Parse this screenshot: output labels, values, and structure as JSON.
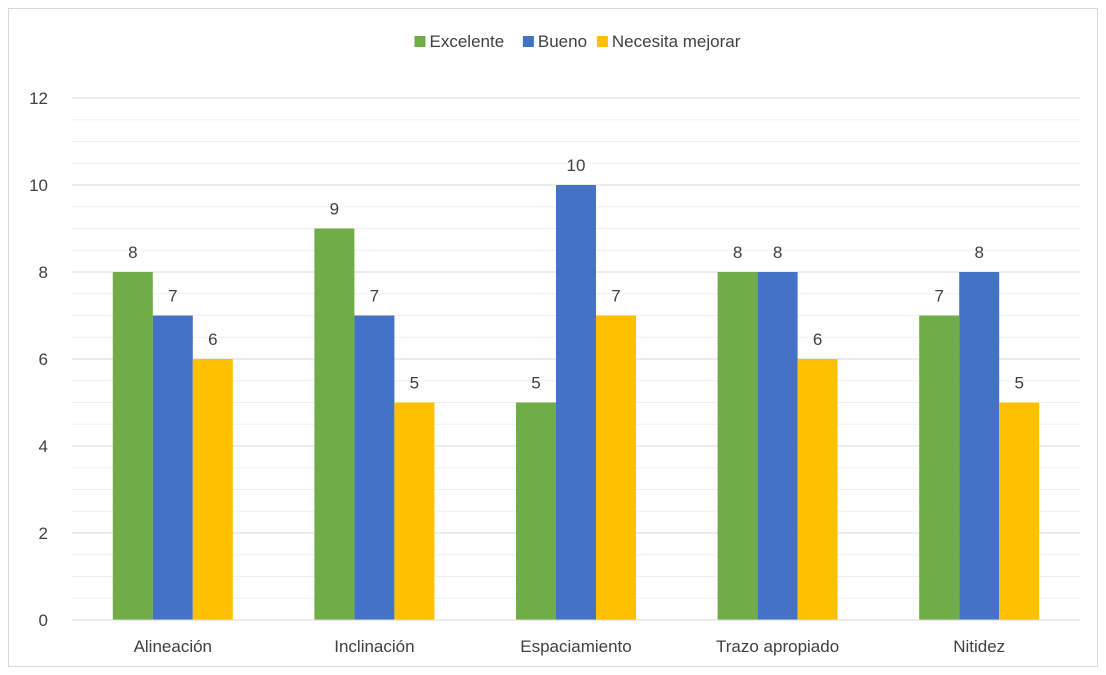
{
  "chart_data": {
    "type": "bar",
    "categories": [
      "Alineación",
      "Inclinación",
      "Espaciamiento",
      "Trazo apropiado",
      "Nitidez"
    ],
    "series": [
      {
        "name": "Excelente",
        "color": "#70ad47",
        "values": [
          8,
          9,
          5,
          8,
          7
        ]
      },
      {
        "name": "Bueno",
        "color": "#4472c4",
        "values": [
          7,
          7,
          10,
          8,
          8
        ]
      },
      {
        "name": "Necesita mejorar",
        "color": "#ffc000",
        "values": [
          6,
          5,
          7,
          6,
          5
        ]
      }
    ],
    "ylim": [
      0,
      12
    ],
    "yticks": [
      0,
      2,
      4,
      6,
      8,
      10,
      12
    ],
    "grid": true,
    "minor_grid": true,
    "legend": "top-center",
    "data_labels": true
  }
}
